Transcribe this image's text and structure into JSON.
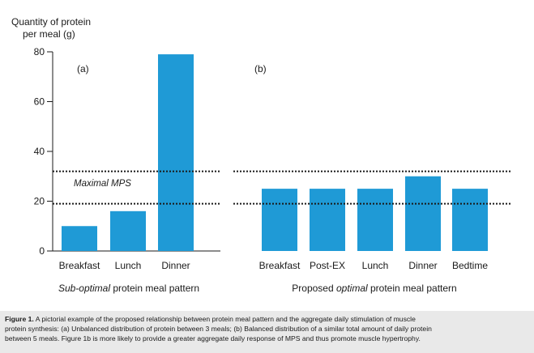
{
  "chart_data": [
    {
      "type": "bar",
      "panel_label": "(a)",
      "categories": [
        "Breakfast",
        "Lunch",
        "Dinner"
      ],
      "values": [
        10,
        16,
        79
      ],
      "ylim": [
        0,
        80
      ],
      "yticks": [
        0,
        20,
        40,
        60,
        80
      ],
      "ylabel_line1": "Quantity of protein",
      "ylabel_line2": "per meal (g)",
      "xlabel_italic": "Sub-optimal",
      "xlabel_rest": " protein meal pattern",
      "reference_lines": [
        32,
        19
      ],
      "reference_label": "Maximal MPS",
      "bar_color": "#1f9ad6"
    },
    {
      "type": "bar",
      "panel_label": "(b)",
      "categories": [
        "Breakfast",
        "Post-EX",
        "Lunch",
        "Dinner",
        "Bedtime"
      ],
      "values": [
        25,
        25,
        25,
        30,
        25
      ],
      "ylim": [
        0,
        80
      ],
      "xlabel_prefix": "Proposed ",
      "xlabel_italic": "optimal",
      "xlabel_rest": " protein meal pattern",
      "reference_lines": [
        32,
        19
      ],
      "bar_color": "#1f9ad6"
    }
  ],
  "caption": {
    "bold": "Figure 1.",
    "line1": " A pictorial example of the proposed relationship between protein meal pattern and the aggregate daily stimulation of muscle",
    "line2": "protein synthesis: (a) Unbalanced distribution of protein between 3 meals; (b) Balanced distribution of a similar total amount of daily protein",
    "line3": "between 5 meals. Figure 1b is more likely to provide a greater aggregate daily response of MPS and thus promote muscle hypertrophy."
  }
}
